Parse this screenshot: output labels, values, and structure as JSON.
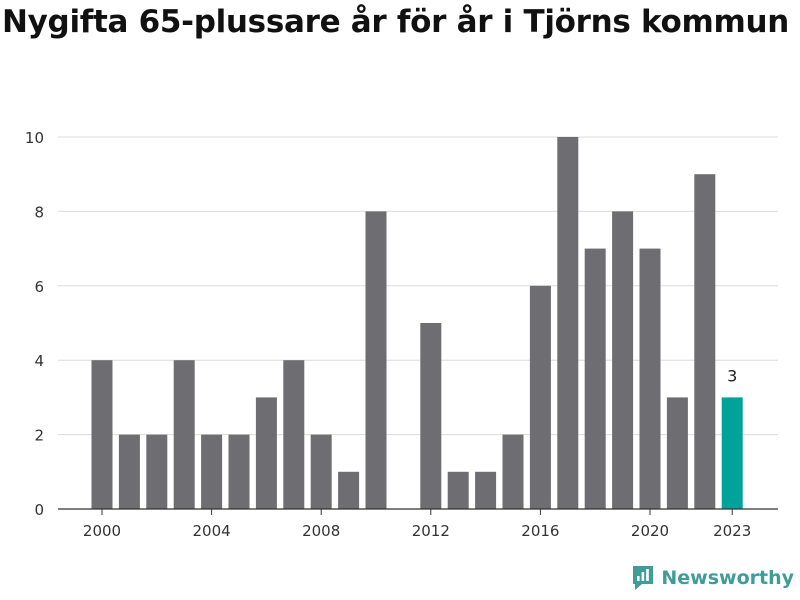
{
  "page": {
    "title": "Nygifta 65-plussare år för år i Tjörns kommun",
    "brand": "Newsworthy"
  },
  "colors": {
    "bar": "#6e6d72",
    "highlight": "#00a39a",
    "grid": "#dcdcdc",
    "axis": "#333333",
    "text": "#333333",
    "brand": "#3f9c98"
  },
  "chart_data": {
    "type": "bar",
    "title": "Nygifta 65-plussare år för år i Tjörns kommun",
    "categories": [
      2000,
      2001,
      2002,
      2003,
      2004,
      2005,
      2006,
      2007,
      2008,
      2009,
      2010,
      2011,
      2012,
      2013,
      2014,
      2015,
      2016,
      2017,
      2018,
      2019,
      2020,
      2021,
      2022,
      2023
    ],
    "values": [
      4,
      2,
      2,
      4,
      2,
      2,
      3,
      4,
      2,
      1,
      8,
      0,
      5,
      1,
      1,
      2,
      6,
      10,
      7,
      8,
      7,
      3,
      9,
      3
    ],
    "highlight_category": 2023,
    "data_labels": [
      {
        "category": 2023,
        "label": "3"
      }
    ],
    "xticks": [
      2000,
      2004,
      2008,
      2012,
      2016,
      2020,
      2023
    ],
    "yticks": [
      0,
      2,
      4,
      6,
      8,
      10
    ],
    "ylim": [
      0,
      10
    ],
    "xlabel": "",
    "ylabel": "",
    "grid": true
  }
}
